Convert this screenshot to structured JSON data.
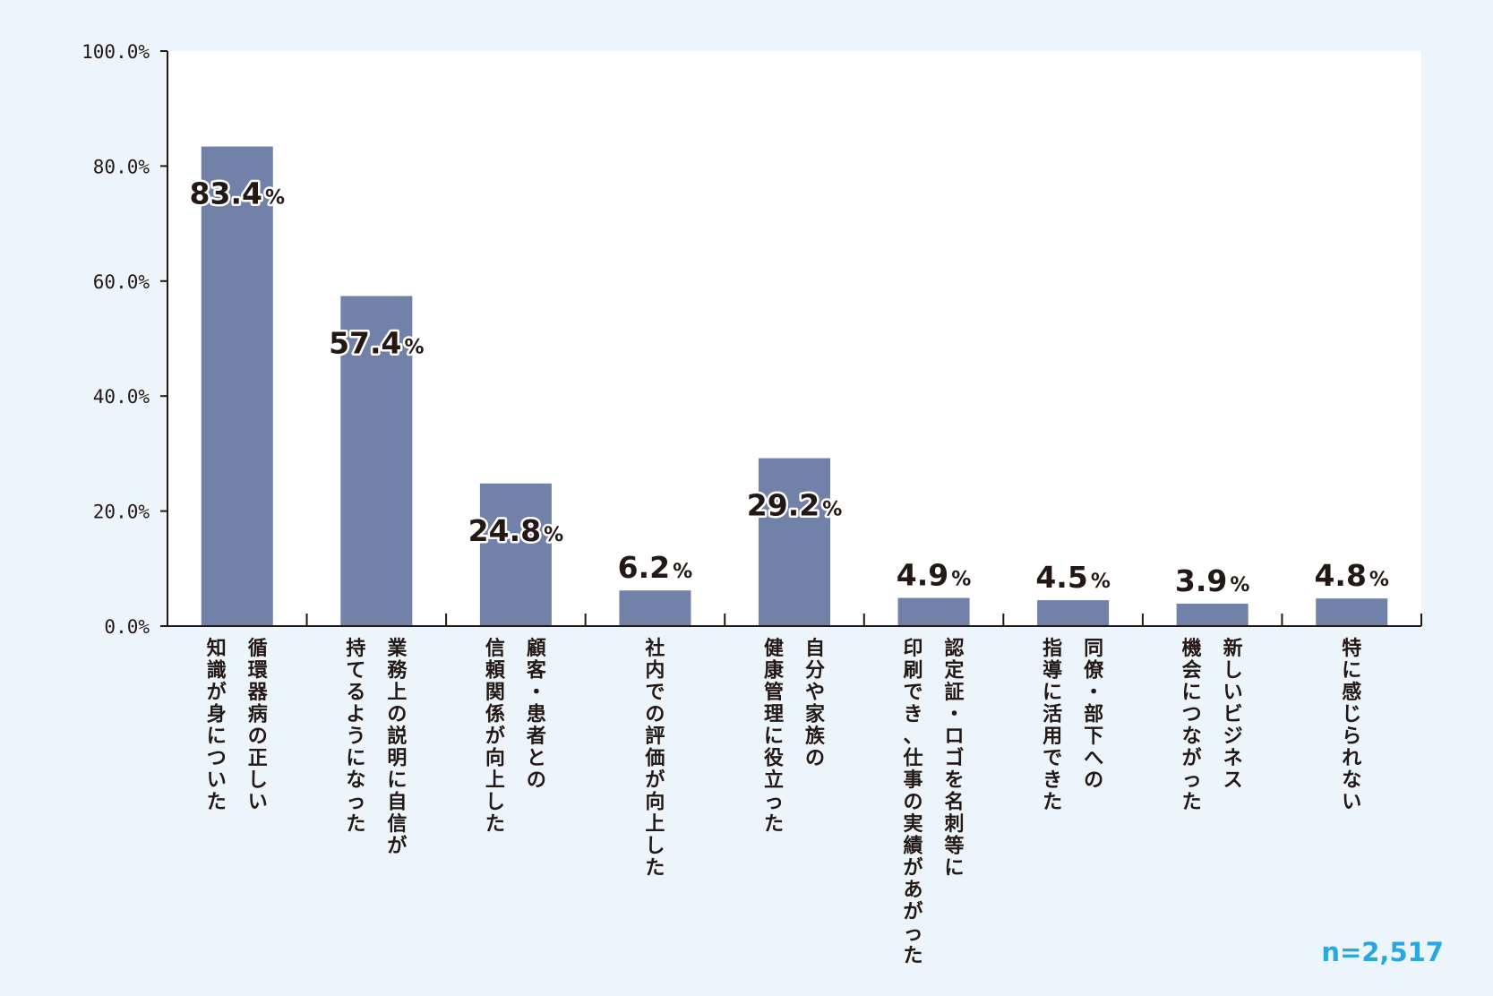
{
  "chart_data": {
    "type": "bar",
    "categories": [
      [
        "循環器病の正しい",
        "知識が身についた"
      ],
      [
        "業務上の説明に自信が",
        "持てるようになった"
      ],
      [
        "顧客・患者との",
        "信頼関係が向上した"
      ],
      [
        "社内での評価が向上した"
      ],
      [
        "自分や家族の",
        "健康管理に役立った"
      ],
      [
        "認定証・ロゴを名刺等に",
        "印刷でき、仕事の実績があがった"
      ],
      [
        "同僚・部下への",
        "指導に活用できた"
      ],
      [
        "新しいビジネス",
        "機会につながった"
      ],
      [
        "特に感じられない"
      ]
    ],
    "values": [
      83.4,
      57.4,
      24.8,
      6.2,
      29.2,
      4.9,
      4.5,
      3.9,
      4.8
    ],
    "value_labels": [
      "83.4",
      "57.4",
      "24.8",
      "6.2",
      "29.2",
      "4.9",
      "4.5",
      "3.9",
      "4.8"
    ],
    "value_unit": "%",
    "yticks": [
      "0.0%",
      "20.0%",
      "40.0%",
      "60.0%",
      "80.0%",
      "100.0%"
    ],
    "ylim": [
      0,
      100
    ],
    "title": "",
    "xlabel": "",
    "ylabel": "",
    "note": "n=2,517",
    "colors": {
      "bar": "#7181a8",
      "plot_bg": "#ffffff",
      "page_bg": "#ecf5fb",
      "axis": "#231815",
      "note": "#2aa7df"
    }
  }
}
